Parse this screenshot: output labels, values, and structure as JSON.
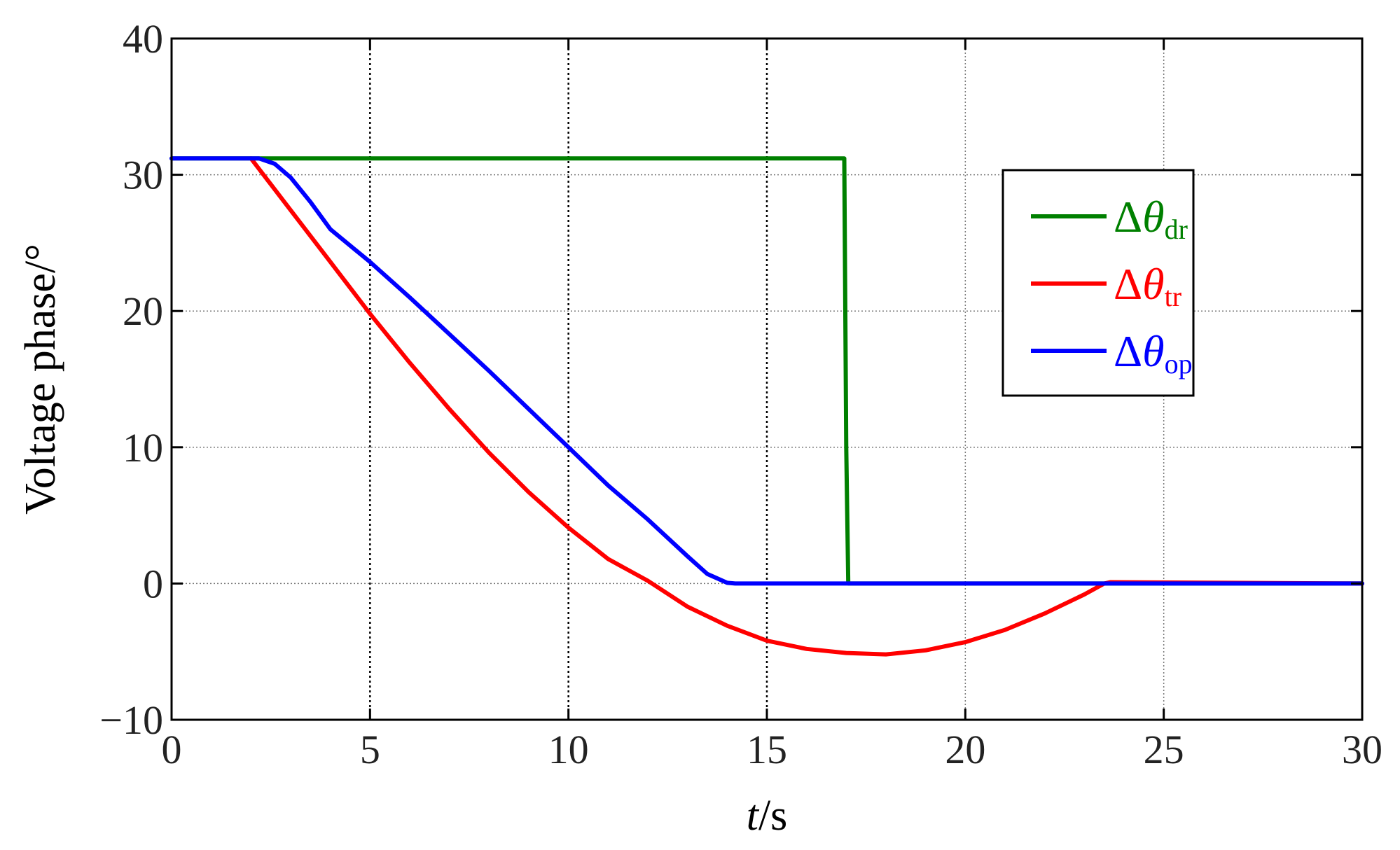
{
  "chart_data": {
    "type": "line",
    "xlabel": {
      "italic": "t",
      "rest": "/s"
    },
    "ylabel": "Voltage phase/°",
    "xlim": [
      0,
      30
    ],
    "ylim": [
      -10,
      40
    ],
    "xticks": [
      0,
      5,
      10,
      15,
      20,
      25,
      30
    ],
    "yticks": [
      -10,
      0,
      10,
      20,
      30,
      40
    ],
    "xtick_labels": [
      "0",
      "5",
      "10",
      "15",
      "20",
      "25",
      "30"
    ],
    "ytick_labels": [
      "−10",
      "0",
      "10",
      "20",
      "30",
      "40"
    ],
    "grid": {
      "x_major": true,
      "y_major": true,
      "style": "dotted"
    },
    "legend": {
      "placement": "top-right"
    },
    "series": [
      {
        "name": {
          "prefix": "Δ",
          "symbol": "θ",
          "subscript": "dr"
        },
        "color": "#008000",
        "points": [
          [
            0,
            31.2
          ],
          [
            16.95,
            31.2
          ],
          [
            17.0,
            10.0
          ],
          [
            17.05,
            0
          ],
          [
            30,
            0
          ]
        ]
      },
      {
        "name": {
          "prefix": "Δ",
          "symbol": "θ",
          "subscript": "tr"
        },
        "color": "#ff0000",
        "points": [
          [
            2.0,
            31.2
          ],
          [
            3,
            27.4
          ],
          [
            4,
            23.6
          ],
          [
            5,
            19.8
          ],
          [
            6,
            16.2
          ],
          [
            7,
            12.8
          ],
          [
            8,
            9.6
          ],
          [
            9,
            6.7
          ],
          [
            10,
            4.1
          ],
          [
            11,
            1.8
          ],
          [
            12,
            0.2
          ],
          [
            13,
            -1.7
          ],
          [
            14,
            -3.1
          ],
          [
            15,
            -4.2
          ],
          [
            16,
            -4.8
          ],
          [
            17,
            -5.1
          ],
          [
            18,
            -5.2
          ],
          [
            19,
            -4.9
          ],
          [
            20,
            -4.3
          ],
          [
            21,
            -3.4
          ],
          [
            22,
            -2.2
          ],
          [
            23,
            -0.8
          ],
          [
            23.5,
            0.0
          ],
          [
            23.65,
            0.1
          ],
          [
            30,
            0
          ]
        ]
      },
      {
        "name": {
          "prefix": "Δ",
          "symbol": "θ",
          "subscript": "op"
        },
        "color": "#0000ff",
        "points": [
          [
            0,
            31.2
          ],
          [
            2.2,
            31.2
          ],
          [
            2.6,
            30.8
          ],
          [
            3,
            29.8
          ],
          [
            3.5,
            28.0
          ],
          [
            4,
            26.0
          ],
          [
            4.5,
            24.8
          ],
          [
            5,
            23.6
          ],
          [
            6,
            21.0
          ],
          [
            7,
            18.3
          ],
          [
            8,
            15.6
          ],
          [
            9,
            12.8
          ],
          [
            10,
            10.0
          ],
          [
            11,
            7.2
          ],
          [
            12,
            4.7
          ],
          [
            13,
            2.0
          ],
          [
            13.5,
            0.7
          ],
          [
            14.0,
            0.05
          ],
          [
            14.2,
            0.0
          ],
          [
            30,
            0
          ]
        ]
      }
    ]
  }
}
